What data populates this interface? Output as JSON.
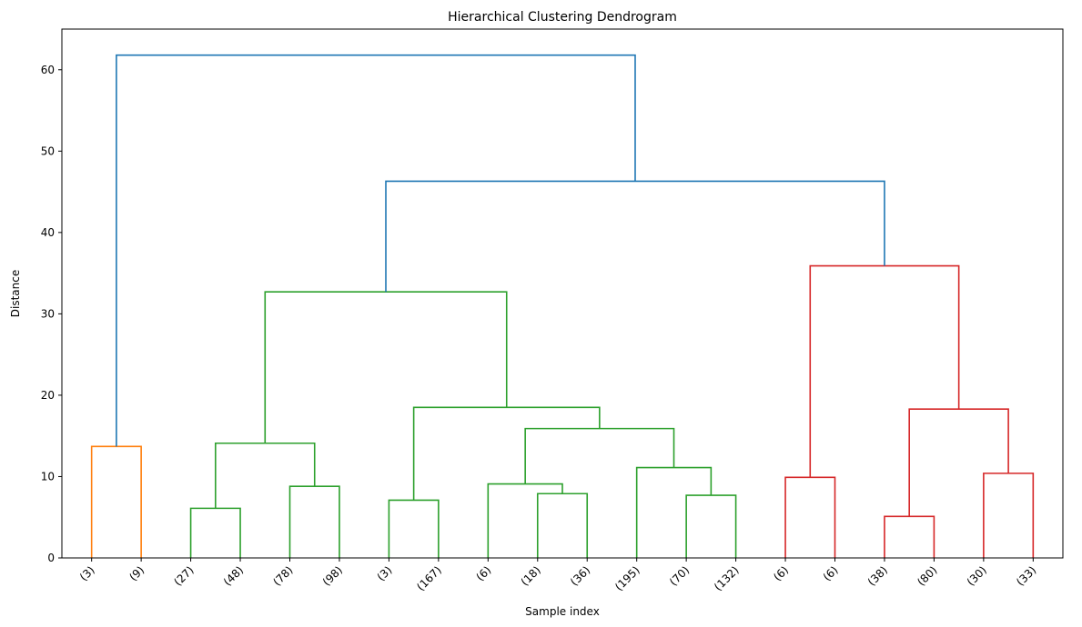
{
  "chart_data": {
    "type": "dendrogram",
    "title": "Hierarchical Clustering Dendrogram",
    "xlabel": "Sample index",
    "ylabel": "Distance",
    "ylim": [
      0,
      65
    ],
    "yticks": [
      0,
      10,
      20,
      30,
      40,
      50,
      60
    ],
    "leaf_labels": [
      "(3)",
      "(9)",
      "(27)",
      "(48)",
      "(78)",
      "(98)",
      "(3)",
      "(167)",
      "(6)",
      "(18)",
      "(36)",
      "(195)",
      "(70)",
      "(132)",
      "(6)",
      "(6)",
      "(38)",
      "(80)",
      "(30)",
      "(33)"
    ],
    "colors": {
      "C0": "#1f77b4",
      "C1": "#ff7f0e",
      "C2": "#2ca02c",
      "C3": "#d62728"
    },
    "links": [
      {
        "x": [
          5,
          5,
          15,
          15
        ],
        "y": [
          0,
          13.7,
          13.7,
          0
        ],
        "color": "C1"
      },
      {
        "x": [
          25,
          25,
          35,
          35
        ],
        "y": [
          0,
          6.1,
          6.1,
          0
        ],
        "color": "C2"
      },
      {
        "x": [
          45,
          45,
          55,
          55
        ],
        "y": [
          0,
          8.8,
          8.8,
          0
        ],
        "color": "C2"
      },
      {
        "x": [
          30,
          30,
          50,
          50
        ],
        "y": [
          6.1,
          14.1,
          14.1,
          8.8
        ],
        "color": "C2"
      },
      {
        "x": [
          65,
          65,
          75,
          75
        ],
        "y": [
          0,
          7.1,
          7.1,
          0
        ],
        "color": "C2"
      },
      {
        "x": [
          95,
          95,
          105,
          105
        ],
        "y": [
          0,
          7.9,
          7.9,
          0
        ],
        "color": "C2"
      },
      {
        "x": [
          85,
          85,
          100,
          100
        ],
        "y": [
          0,
          9.1,
          9.1,
          7.9
        ],
        "color": "C2"
      },
      {
        "x": [
          125,
          125,
          135,
          135
        ],
        "y": [
          0,
          7.7,
          7.7,
          0
        ],
        "color": "C2"
      },
      {
        "x": [
          115,
          115,
          130,
          130
        ],
        "y": [
          0,
          11.1,
          11.1,
          7.7
        ],
        "color": "C2"
      },
      {
        "x": [
          92.5,
          92.5,
          122.5,
          122.5
        ],
        "y": [
          9.1,
          15.9,
          15.9,
          11.1
        ],
        "color": "C2"
      },
      {
        "x": [
          70,
          70,
          107.5,
          107.5
        ],
        "y": [
          7.1,
          18.5,
          18.5,
          15.9
        ],
        "color": "C2"
      },
      {
        "x": [
          40,
          40,
          88.75,
          88.75
        ],
        "y": [
          14.1,
          32.7,
          32.7,
          18.5
        ],
        "color": "C2"
      },
      {
        "x": [
          145,
          145,
          155,
          155
        ],
        "y": [
          0,
          9.9,
          9.9,
          0
        ],
        "color": "C3"
      },
      {
        "x": [
          165,
          165,
          175,
          175
        ],
        "y": [
          0,
          5.1,
          5.1,
          0
        ],
        "color": "C3"
      },
      {
        "x": [
          185,
          185,
          195,
          195
        ],
        "y": [
          0,
          10.4,
          10.4,
          0
        ],
        "color": "C3"
      },
      {
        "x": [
          170,
          170,
          190,
          190
        ],
        "y": [
          5.1,
          18.3,
          18.3,
          10.4
        ],
        "color": "C3"
      },
      {
        "x": [
          150,
          150,
          180,
          180
        ],
        "y": [
          9.9,
          35.9,
          35.9,
          18.3
        ],
        "color": "C3"
      },
      {
        "x": [
          64.375,
          64.375,
          165,
          165
        ],
        "y": [
          32.7,
          46.3,
          46.3,
          35.9
        ],
        "color": "C0"
      },
      {
        "x": [
          10,
          10,
          114.6875,
          114.6875
        ],
        "y": [
          13.7,
          61.8,
          61.8,
          46.3
        ],
        "color": "C0"
      }
    ]
  }
}
